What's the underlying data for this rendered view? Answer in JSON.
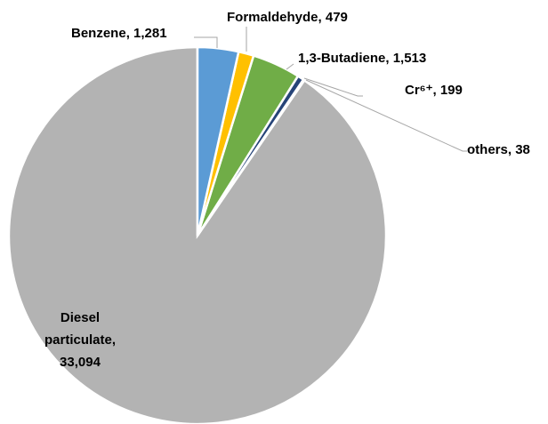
{
  "chart_data": {
    "type": "pie",
    "categories": [
      "Benzene",
      "Formaldehyde",
      "1,3-Butadiene",
      "Cr⁶⁺",
      "others",
      "Diesel particulate"
    ],
    "values": [
      1281,
      479,
      1513,
      199,
      38,
      33094
    ],
    "value_labels": [
      "1,281",
      "479",
      "1,513",
      "199",
      "38",
      "33,094"
    ],
    "colors": [
      "#5b9bd5",
      "#ffc000",
      "#70ad47",
      "#264478",
      "#9e9e9e",
      "#b3b3b3"
    ]
  }
}
